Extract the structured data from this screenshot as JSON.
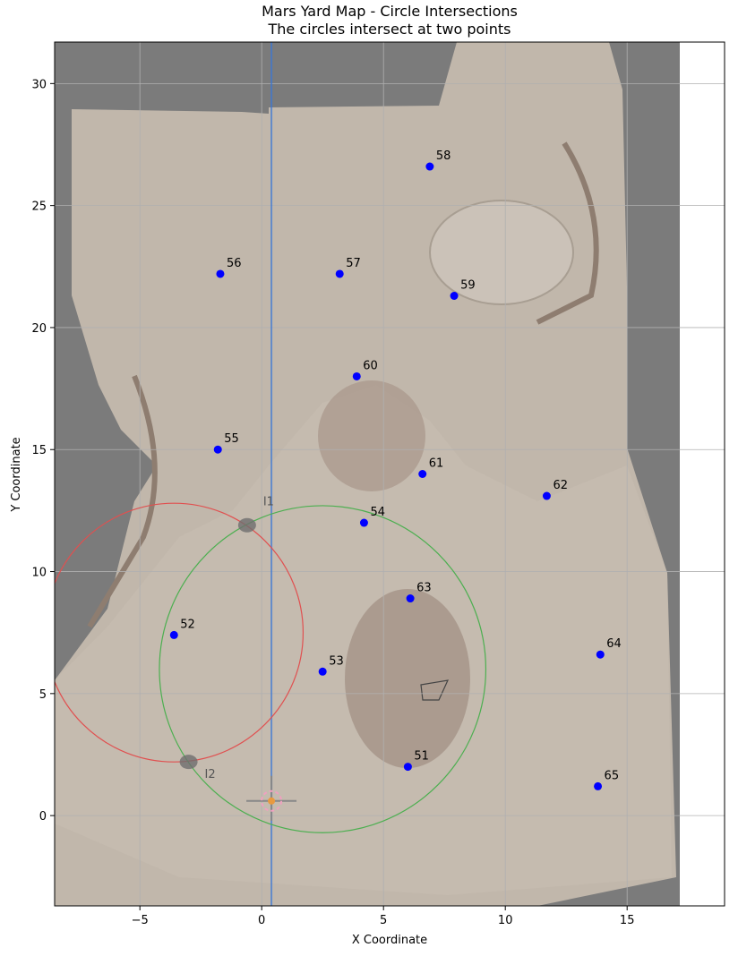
{
  "chart_data": {
    "type": "scatter",
    "title": "Mars Yard Map - Circle Intersections",
    "subtitle": "The circles intersect at two points",
    "xlabel": "X Coordinate",
    "ylabel": "Y Coordinate",
    "xlim": [
      -8.5,
      19
    ],
    "ylim": [
      -3.7,
      31.7
    ],
    "xticks": [
      -5,
      0,
      5,
      10,
      15
    ],
    "yticks": [
      0,
      5,
      10,
      15,
      20,
      25,
      30
    ],
    "grid": true,
    "background": "map image",
    "points": [
      {
        "label": "51",
        "x": 6.0,
        "y": 2.0
      },
      {
        "label": "52",
        "x": -3.6,
        "y": 7.4
      },
      {
        "label": "53",
        "x": 2.5,
        "y": 5.9
      },
      {
        "label": "54",
        "x": 4.2,
        "y": 12.0
      },
      {
        "label": "55",
        "x": -1.8,
        "y": 15.0
      },
      {
        "label": "56",
        "x": -1.7,
        "y": 22.2
      },
      {
        "label": "57",
        "x": 3.2,
        "y": 22.2
      },
      {
        "label": "58",
        "x": 6.9,
        "y": 26.6
      },
      {
        "label": "59",
        "x": 7.9,
        "y": 21.3
      },
      {
        "label": "60",
        "x": 3.9,
        "y": 18.0
      },
      {
        "label": "61",
        "x": 6.6,
        "y": 14.0
      },
      {
        "label": "62",
        "x": 11.7,
        "y": 13.1
      },
      {
        "label": "63",
        "x": 6.1,
        "y": 8.9
      },
      {
        "label": "64",
        "x": 13.9,
        "y": 6.6
      },
      {
        "label": "65",
        "x": 13.8,
        "y": 1.2
      }
    ],
    "point_color": "#0000ff",
    "circles": [
      {
        "cx": -3.6,
        "cy": 7.5,
        "r": 5.3,
        "color": "#e05050"
      },
      {
        "cx": 2.5,
        "cy": 6.0,
        "r": 6.7,
        "color": "#4caf50"
      }
    ],
    "intersections": [
      {
        "label": "I1",
        "x": -0.6,
        "y": 11.9
      },
      {
        "label": "I2",
        "x": -3.0,
        "y": 2.2
      }
    ],
    "rover": {
      "x": 0.4,
      "y": 0.6
    },
    "vertical_line_x": 0.4
  }
}
